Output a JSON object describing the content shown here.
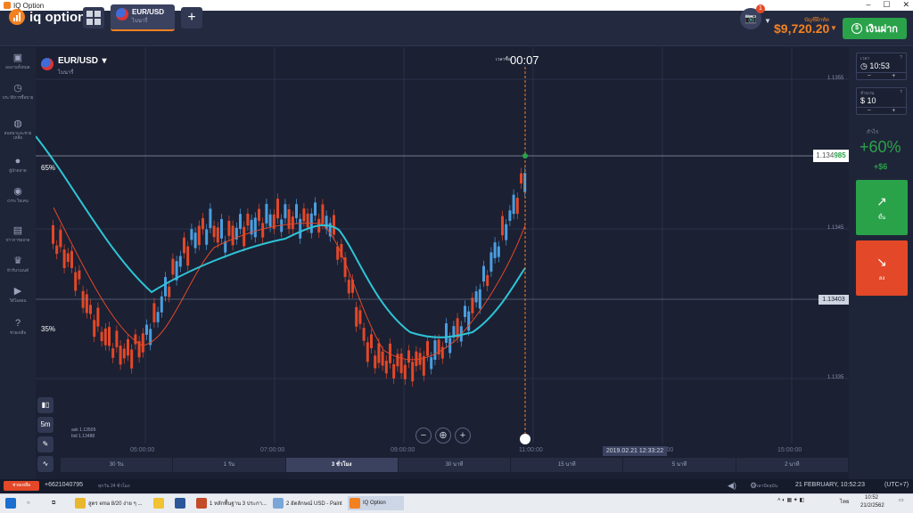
{
  "window": {
    "title": "IQ Option"
  },
  "header": {
    "logo_text": "iq option",
    "asset_tab": {
      "name": "EUR/USD",
      "subtitle": "ไบนารี่"
    },
    "add_tab": "+",
    "camera_badge": "1",
    "balance_label": "บัญชีฝึกหัด",
    "balance": "$9,720.20",
    "deposit_label": "เงินฝาก"
  },
  "sidebar": {
    "items": [
      {
        "icon": "briefcase-icon",
        "label": "ผลงานทั้งหมด"
      },
      {
        "icon": "history-icon",
        "label": "ประวัติการซื้อขาย"
      },
      {
        "icon": "chat-icon",
        "label": "สนทนาและช่วยเหลือ"
      },
      {
        "icon": "leader-icon",
        "label": "ผู้นำตลาด"
      },
      {
        "icon": "otn-icon",
        "label": "OTN โทเคน"
      },
      {
        "icon": "news-icon",
        "label": "ข่าวการตลาด"
      },
      {
        "icon": "trophy-icon",
        "label": "ทัวร์นาเมนต์"
      },
      {
        "icon": "video-icon",
        "label": "วิดีโอสอน"
      },
      {
        "icon": "help-icon",
        "label": "ช่วยเหลือ"
      }
    ]
  },
  "chart": {
    "asset": {
      "name": "EUR/USD",
      "subtitle": "ไบนารี่"
    },
    "timer_label": "เวลาซื้อ",
    "timer": "00:07",
    "price_labels": [
      "1.1355",
      "1.1345",
      "1.1335"
    ],
    "current_price": {
      "prefix": "1.134",
      "suffix": "985"
    },
    "mid_price": "1.13403",
    "pct_up": "65%",
    "pct_down": "35%",
    "ask": "ask 1.13509",
    "bid": "bid 1.13488",
    "time_ticks": [
      "05:00:00",
      "07:00:00",
      "09:00:00",
      "11:00:00",
      "13:00:00",
      "15:00:00"
    ],
    "date_tag": "2019.02.21 12:33:22",
    "tool_5m": "5m",
    "timeframes": [
      "30 วัน",
      "1 วัน",
      "3 ชั่วโมง",
      "30 นาที",
      "15 นาที",
      "5 นาที",
      "2 นาที"
    ],
    "active_timeframe": "3 ชั่วโมง"
  },
  "right_panel": {
    "time": {
      "label": "เวลา",
      "value": "10:53"
    },
    "amount": {
      "label": "จำนวน",
      "value": "10",
      "currency": "$"
    },
    "profit_label": "กำไร",
    "profit_pct": "+60%",
    "profit_amount": "+$6",
    "call_label": "ขึ้น",
    "put_label": "ลง"
  },
  "statusbar": {
    "support": "ช่วยเหลือ",
    "phone": "+6621040795",
    "support_hours": "ทุกวัน 24 ชั่วโมง",
    "clock_label": "เวลาปัจจุบัน",
    "datetime": "21 FEBRUARY, 10:52:23",
    "tz": "(UTC+7)"
  },
  "taskbar": {
    "items": [
      "สูตร ema 8/20 ง่าย ๆ ...",
      "1 หลักพื้นฐาน 3 ประกา...",
      "2 อัตลักษณ์ USD - Paint",
      "IQ Option"
    ],
    "lang": "ไทย",
    "time": "10:52",
    "date": "21/2/2562"
  },
  "colors": {
    "accent": "#f48120",
    "up": "#2aa24a",
    "down": "#e34828",
    "ema_slow": "#2ec4d6",
    "candle_up": "#4a9fe0"
  }
}
